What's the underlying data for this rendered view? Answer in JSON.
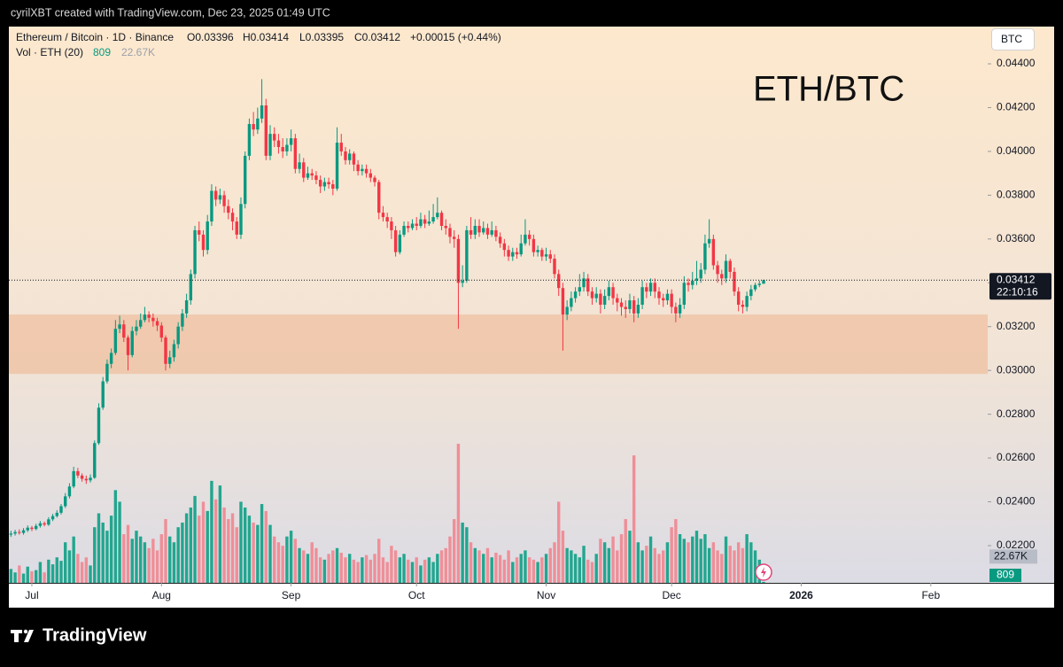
{
  "header": "cyrilXBT created with TradingView.com, Dec 23, 2025 01:49 UTC",
  "brand": "TradingView",
  "chart_data": {
    "type": "candlestick",
    "symbol": "Ethereum / Bitcoin · 1D · Binance",
    "legend": {
      "open": "O0.03396",
      "high": "H0.03414",
      "low": "L0.03395",
      "close": "C0.03412",
      "change": "+0.00015 (+0.44%)"
    },
    "volume_title": "Vol · ETH (20)",
    "currency": "BTC",
    "annotation": "ETH/BTC",
    "last_price": {
      "value": 0.03412,
      "label": "0.03412"
    },
    "countdown": "22:10:16",
    "vol_ma": {
      "value": 22670,
      "label": "22.67K"
    },
    "zone": [
      0.02984,
      0.03255
    ],
    "up_color": "#089981",
    "down_color": "#f23645",
    "vol_up_color": "#22a68f",
    "vol_down_color": "#ef8f98",
    "zone_color": "#efc2a4",
    "ylim": [
      0.0203,
      0.0457
    ],
    "yticks": [
      {
        "value": 0.022,
        "label": "0.02200"
      },
      {
        "value": 0.024,
        "label": "0.02400"
      },
      {
        "value": 0.026,
        "label": "0.02600"
      },
      {
        "value": 0.028,
        "label": "0.02800"
      },
      {
        "value": 0.03,
        "label": "0.03000"
      },
      {
        "value": 0.032,
        "label": "0.03200"
      },
      {
        "value": 0.034,
        "label": "0.03400"
      },
      {
        "value": 0.036,
        "label": "0.03600"
      },
      {
        "value": 0.038,
        "label": "0.03800"
      },
      {
        "value": 0.04,
        "label": "0.04000"
      },
      {
        "value": 0.042,
        "label": "0.04200"
      },
      {
        "value": 0.044,
        "label": "0.04400"
      }
    ],
    "xlim": [
      -0.5,
      233.6
    ],
    "xticks": [
      {
        "value": 5,
        "label": "Jul"
      },
      {
        "value": 36,
        "label": "Aug"
      },
      {
        "value": 67,
        "label": "Sep"
      },
      {
        "value": 97,
        "label": "Oct"
      },
      {
        "value": 128,
        "label": "Nov"
      },
      {
        "value": 158,
        "label": "Dec"
      },
      {
        "value": 189,
        "label": "2026"
      },
      {
        "value": 220,
        "label": "Feb"
      }
    ],
    "vlim": [
      0,
      480000
    ],
    "ohlc": [
      [
        0.0225,
        0.02268,
        0.0224,
        0.02255
      ],
      [
        0.02255,
        0.02272,
        0.02246,
        0.02262
      ],
      [
        0.02262,
        0.02274,
        0.0225,
        0.02258
      ],
      [
        0.02258,
        0.0228,
        0.0225,
        0.0227
      ],
      [
        0.0227,
        0.02292,
        0.02262,
        0.02282
      ],
      [
        0.02282,
        0.0229,
        0.02266,
        0.02276
      ],
      [
        0.02276,
        0.023,
        0.0227,
        0.0229
      ],
      [
        0.0229,
        0.02312,
        0.02282,
        0.02302
      ],
      [
        0.02302,
        0.0231,
        0.02288,
        0.02296
      ],
      [
        0.02296,
        0.0233,
        0.0229,
        0.0232
      ],
      [
        0.0232,
        0.02345,
        0.02312,
        0.02335
      ],
      [
        0.02335,
        0.02362,
        0.02328,
        0.0235
      ],
      [
        0.0235,
        0.0239,
        0.02342,
        0.0238
      ],
      [
        0.0238,
        0.0244,
        0.02372,
        0.02425
      ],
      [
        0.02425,
        0.02485,
        0.02415,
        0.0247
      ],
      [
        0.0247,
        0.0256,
        0.02462,
        0.0254
      ],
      [
        0.0254,
        0.02555,
        0.02508,
        0.0252
      ],
      [
        0.0252,
        0.0253,
        0.02492,
        0.02505
      ],
      [
        0.02505,
        0.0252,
        0.02482,
        0.02498
      ],
      [
        0.02498,
        0.02525,
        0.02488,
        0.0251
      ],
      [
        0.0251,
        0.0268,
        0.02505,
        0.02668
      ],
      [
        0.02668,
        0.0285,
        0.0266,
        0.0283
      ],
      [
        0.0283,
        0.0297,
        0.0282,
        0.0295
      ],
      [
        0.0295,
        0.0305,
        0.0294,
        0.0303
      ],
      [
        0.0303,
        0.031,
        0.0301,
        0.0308
      ],
      [
        0.0308,
        0.0323,
        0.0307,
        0.0319
      ],
      [
        0.0319,
        0.0325,
        0.0317,
        0.0321
      ],
      [
        0.0321,
        0.0323,
        0.0313,
        0.0315
      ],
      [
        0.0315,
        0.0316,
        0.03,
        0.0307
      ],
      [
        0.0307,
        0.032,
        0.0306,
        0.0318
      ],
      [
        0.0318,
        0.0323,
        0.0316,
        0.032
      ],
      [
        0.032,
        0.0326,
        0.0319,
        0.0323
      ],
      [
        0.0323,
        0.0329,
        0.0322,
        0.03255
      ],
      [
        0.03255,
        0.0327,
        0.0322,
        0.0324
      ],
      [
        0.0324,
        0.0326,
        0.032,
        0.03225
      ],
      [
        0.03225,
        0.0324,
        0.0318,
        0.03205
      ],
      [
        0.03205,
        0.0322,
        0.0313,
        0.0315
      ],
      [
        0.0315,
        0.0316,
        0.03,
        0.0303
      ],
      [
        0.0303,
        0.0309,
        0.0301,
        0.0306
      ],
      [
        0.0306,
        0.0314,
        0.0304,
        0.0312
      ],
      [
        0.0312,
        0.0322,
        0.031,
        0.032
      ],
      [
        0.032,
        0.0328,
        0.0318,
        0.0326
      ],
      [
        0.0326,
        0.0335,
        0.0324,
        0.0332
      ],
      [
        0.0332,
        0.0346,
        0.033,
        0.0344
      ],
      [
        0.0344,
        0.0366,
        0.0342,
        0.0364
      ],
      [
        0.0364,
        0.0368,
        0.0359,
        0.0362
      ],
      [
        0.0362,
        0.0364,
        0.0352,
        0.0355
      ],
      [
        0.0355,
        0.0371,
        0.0353,
        0.0368
      ],
      [
        0.0368,
        0.0385,
        0.0366,
        0.0382
      ],
      [
        0.0382,
        0.0384,
        0.0375,
        0.0378
      ],
      [
        0.0378,
        0.0383,
        0.0376,
        0.038
      ],
      [
        0.038,
        0.0382,
        0.0372,
        0.0375
      ],
      [
        0.0375,
        0.0378,
        0.0369,
        0.0372
      ],
      [
        0.0372,
        0.0374,
        0.0364,
        0.0368
      ],
      [
        0.0368,
        0.037,
        0.036,
        0.0362
      ],
      [
        0.0362,
        0.0379,
        0.036,
        0.0376
      ],
      [
        0.0376,
        0.04,
        0.0374,
        0.0398
      ],
      [
        0.0398,
        0.0415,
        0.0396,
        0.04125
      ],
      [
        0.04125,
        0.0418,
        0.0407,
        0.041
      ],
      [
        0.041,
        0.042,
        0.0408,
        0.0415
      ],
      [
        0.0415,
        0.0433,
        0.0413,
        0.0421
      ],
      [
        0.0421,
        0.0424,
        0.0396,
        0.0398
      ],
      [
        0.0398,
        0.0412,
        0.0396,
        0.0408
      ],
      [
        0.0408,
        0.0411,
        0.0402,
        0.0405
      ],
      [
        0.0405,
        0.0408,
        0.0399,
        0.0402
      ],
      [
        0.0402,
        0.0406,
        0.0397,
        0.04
      ],
      [
        0.04,
        0.0406,
        0.0398,
        0.0403
      ],
      [
        0.0403,
        0.041,
        0.04,
        0.0406
      ],
      [
        0.0406,
        0.0408,
        0.039,
        0.0392
      ],
      [
        0.0392,
        0.0399,
        0.039,
        0.0395
      ],
      [
        0.0395,
        0.0397,
        0.0386,
        0.0388
      ],
      [
        0.0388,
        0.0393,
        0.0387,
        0.039
      ],
      [
        0.039,
        0.0392,
        0.0387,
        0.0389
      ],
      [
        0.0389,
        0.0391,
        0.0385,
        0.0387
      ],
      [
        0.0387,
        0.0389,
        0.0381,
        0.0384
      ],
      [
        0.0384,
        0.0388,
        0.0382,
        0.0386
      ],
      [
        0.0386,
        0.0388,
        0.0383,
        0.0385
      ],
      [
        0.0385,
        0.0387,
        0.038,
        0.0383
      ],
      [
        0.0383,
        0.0411,
        0.0382,
        0.0404
      ],
      [
        0.0404,
        0.0408,
        0.0398,
        0.04
      ],
      [
        0.04,
        0.0402,
        0.0394,
        0.0396
      ],
      [
        0.0396,
        0.0401,
        0.0394,
        0.0399
      ],
      [
        0.0399,
        0.04,
        0.0391,
        0.0394
      ],
      [
        0.0394,
        0.0396,
        0.0389,
        0.0391
      ],
      [
        0.0391,
        0.0394,
        0.0389,
        0.0392
      ],
      [
        0.0392,
        0.0394,
        0.0388,
        0.039
      ],
      [
        0.039,
        0.0392,
        0.0386,
        0.0388
      ],
      [
        0.0388,
        0.0389,
        0.0384,
        0.0386
      ],
      [
        0.0386,
        0.0387,
        0.0369,
        0.0372
      ],
      [
        0.0372,
        0.0375,
        0.0368,
        0.037
      ],
      [
        0.037,
        0.0372,
        0.0365,
        0.0368
      ],
      [
        0.0368,
        0.037,
        0.036,
        0.0364
      ],
      [
        0.0364,
        0.0366,
        0.0352,
        0.0354
      ],
      [
        0.0354,
        0.0364,
        0.0353,
        0.0362
      ],
      [
        0.0362,
        0.0368,
        0.0361,
        0.0366
      ],
      [
        0.0366,
        0.0368,
        0.0363,
        0.0365
      ],
      [
        0.0365,
        0.0369,
        0.0364,
        0.0367
      ],
      [
        0.0367,
        0.037,
        0.0364,
        0.0366
      ],
      [
        0.0366,
        0.0372,
        0.0365,
        0.0369
      ],
      [
        0.0369,
        0.0371,
        0.0365,
        0.0367
      ],
      [
        0.0367,
        0.0373,
        0.0366,
        0.0368
      ],
      [
        0.0368,
        0.0376,
        0.0367,
        0.037
      ],
      [
        0.037,
        0.0379,
        0.0369,
        0.0372
      ],
      [
        0.0372,
        0.0373,
        0.0364,
        0.0366
      ],
      [
        0.0366,
        0.0369,
        0.0362,
        0.0365
      ],
      [
        0.0365,
        0.0367,
        0.0358,
        0.0361
      ],
      [
        0.0361,
        0.0364,
        0.0356,
        0.036
      ],
      [
        0.036,
        0.0362,
        0.0319,
        0.034
      ],
      [
        0.034,
        0.0348,
        0.0338,
        0.0341
      ],
      [
        0.0341,
        0.0366,
        0.034,
        0.0364
      ],
      [
        0.0364,
        0.037,
        0.036,
        0.0362
      ],
      [
        0.0362,
        0.0369,
        0.036,
        0.0366
      ],
      [
        0.0366,
        0.0369,
        0.0361,
        0.0363
      ],
      [
        0.0363,
        0.0368,
        0.0362,
        0.0365
      ],
      [
        0.0365,
        0.0367,
        0.036,
        0.0362
      ],
      [
        0.0362,
        0.0368,
        0.0361,
        0.0364
      ],
      [
        0.0364,
        0.0366,
        0.0359,
        0.0361
      ],
      [
        0.0361,
        0.0363,
        0.0356,
        0.0358
      ],
      [
        0.0358,
        0.036,
        0.0352,
        0.0355
      ],
      [
        0.0355,
        0.0357,
        0.035,
        0.0352
      ],
      [
        0.0352,
        0.0356,
        0.035,
        0.0354
      ],
      [
        0.0354,
        0.0356,
        0.0351,
        0.0353
      ],
      [
        0.0353,
        0.0362,
        0.0352,
        0.0358
      ],
      [
        0.0358,
        0.0369,
        0.0357,
        0.0362
      ],
      [
        0.0362,
        0.0364,
        0.0357,
        0.036
      ],
      [
        0.036,
        0.0362,
        0.0352,
        0.0354
      ],
      [
        0.0354,
        0.0357,
        0.0352,
        0.0355
      ],
      [
        0.0355,
        0.0356,
        0.035,
        0.0352
      ],
      [
        0.0352,
        0.0356,
        0.035,
        0.0353
      ],
      [
        0.0353,
        0.0355,
        0.0349,
        0.0351
      ],
      [
        0.0351,
        0.0353,
        0.0342,
        0.0344
      ],
      [
        0.0344,
        0.0346,
        0.0334,
        0.03376
      ],
      [
        0.03376,
        0.034,
        0.0309,
        0.03255
      ],
      [
        0.03255,
        0.0332,
        0.0323,
        0.0329
      ],
      [
        0.0329,
        0.0336,
        0.0327,
        0.0333
      ],
      [
        0.0333,
        0.0338,
        0.0331,
        0.0336
      ],
      [
        0.0336,
        0.0344,
        0.0334,
        0.0338
      ],
      [
        0.0338,
        0.0345,
        0.0336,
        0.0342
      ],
      [
        0.0342,
        0.0344,
        0.0334,
        0.0336
      ],
      [
        0.0336,
        0.0338,
        0.033,
        0.0333
      ],
      [
        0.0333,
        0.0338,
        0.0331,
        0.0335
      ],
      [
        0.0335,
        0.0337,
        0.0326,
        0.033
      ],
      [
        0.033,
        0.0337,
        0.0328,
        0.0334
      ],
      [
        0.0334,
        0.0341,
        0.0332,
        0.0338
      ],
      [
        0.0338,
        0.034,
        0.033,
        0.0333
      ],
      [
        0.0333,
        0.0335,
        0.0327,
        0.0331
      ],
      [
        0.0331,
        0.0333,
        0.0325,
        0.0329
      ],
      [
        0.0329,
        0.0332,
        0.0324,
        0.0328
      ],
      [
        0.0328,
        0.0335,
        0.0326,
        0.0332
      ],
      [
        0.0332,
        0.0334,
        0.0322,
        0.0326
      ],
      [
        0.0326,
        0.0333,
        0.0324,
        0.033
      ],
      [
        0.033,
        0.0341,
        0.0328,
        0.0338
      ],
      [
        0.0338,
        0.034,
        0.0333,
        0.0336
      ],
      [
        0.0336,
        0.0342,
        0.0334,
        0.034
      ],
      [
        0.034,
        0.0342,
        0.0333,
        0.0336
      ],
      [
        0.0336,
        0.0338,
        0.033,
        0.0333
      ],
      [
        0.0333,
        0.0335,
        0.0329,
        0.0332
      ],
      [
        0.0332,
        0.0337,
        0.033,
        0.0335
      ],
      [
        0.0335,
        0.0337,
        0.0326,
        0.0329
      ],
      [
        0.0329,
        0.0331,
        0.0322,
        0.0326
      ],
      [
        0.0326,
        0.0333,
        0.0324,
        0.033
      ],
      [
        0.033,
        0.0343,
        0.0328,
        0.034
      ],
      [
        0.034,
        0.0342,
        0.0336,
        0.0339
      ],
      [
        0.0339,
        0.0345,
        0.0337,
        0.0341
      ],
      [
        0.0341,
        0.035,
        0.0339,
        0.0342
      ],
      [
        0.0342,
        0.0349,
        0.034,
        0.0346
      ],
      [
        0.0346,
        0.0362,
        0.0344,
        0.0358
      ],
      [
        0.0358,
        0.0369,
        0.0356,
        0.036
      ],
      [
        0.036,
        0.0362,
        0.0346,
        0.0348
      ],
      [
        0.0348,
        0.035,
        0.034,
        0.0344
      ],
      [
        0.0344,
        0.0346,
        0.0339,
        0.0342
      ],
      [
        0.0342,
        0.0353,
        0.034,
        0.035
      ],
      [
        0.035,
        0.0351,
        0.0342,
        0.0345
      ],
      [
        0.0345,
        0.0347,
        0.0334,
        0.0336
      ],
      [
        0.0336,
        0.0338,
        0.0327,
        0.033
      ],
      [
        0.033,
        0.0332,
        0.0326,
        0.0329
      ],
      [
        0.0329,
        0.0336,
        0.0327,
        0.0334
      ],
      [
        0.0334,
        0.0339,
        0.0332,
        0.0337
      ],
      [
        0.0337,
        0.034,
        0.0336,
        0.0339
      ],
      [
        0.0339,
        0.0341,
        0.0338,
        0.03396
      ],
      [
        0.03396,
        0.03414,
        0.03395,
        0.03412
      ]
    ],
    "volume": [
      12000,
      9000,
      15000,
      8000,
      14000,
      10000,
      11000,
      18000,
      9000,
      20000,
      16000,
      22000,
      19000,
      35000,
      28000,
      40000,
      25000,
      18000,
      22000,
      15000,
      48000,
      60000,
      52000,
      45000,
      58000,
      80000,
      70000,
      42000,
      50000,
      38000,
      45000,
      40000,
      35000,
      30000,
      38000,
      28000,
      42000,
      55000,
      40000,
      35000,
      48000,
      52000,
      60000,
      65000,
      75000,
      58000,
      70000,
      62000,
      88000,
      72000,
      84000,
      65000,
      55000,
      60000,
      48000,
      70000,
      65000,
      58000,
      52000,
      50000,
      68000,
      62000,
      50000,
      40000,
      35000,
      32000,
      40000,
      45000,
      38000,
      30000,
      28000,
      25000,
      35000,
      30000,
      22000,
      20000,
      25000,
      28000,
      30000,
      26000,
      22000,
      25000,
      20000,
      18000,
      22000,
      24000,
      20000,
      25000,
      38000,
      22000,
      18000,
      32000,
      28000,
      22000,
      25000,
      20000,
      18000,
      22000,
      15000,
      20000,
      22000,
      18000,
      25000,
      28000,
      30000,
      40000,
      55000,
      120000,
      52000,
      48000,
      35000,
      30000,
      28000,
      25000,
      30000,
      22000,
      26000,
      24000,
      20000,
      28000,
      18000,
      22000,
      25000,
      28000,
      22000,
      20000,
      18000,
      22000,
      25000,
      30000,
      35000,
      70000,
      45000,
      30000,
      28000,
      25000,
      22000,
      32000,
      20000,
      18000,
      25000,
      38000,
      35000,
      30000,
      40000,
      28000,
      42000,
      55000,
      45000,
      110000,
      35000,
      28000,
      32000,
      40000,
      30000,
      25000,
      28000,
      35000,
      48000,
      55000,
      42000,
      38000,
      35000,
      40000,
      45000,
      38000,
      42000,
      30000,
      35000,
      28000,
      25000,
      40000,
      32000,
      28000,
      35000,
      30000,
      42000,
      35000,
      28000,
      20000,
      809
    ]
  }
}
